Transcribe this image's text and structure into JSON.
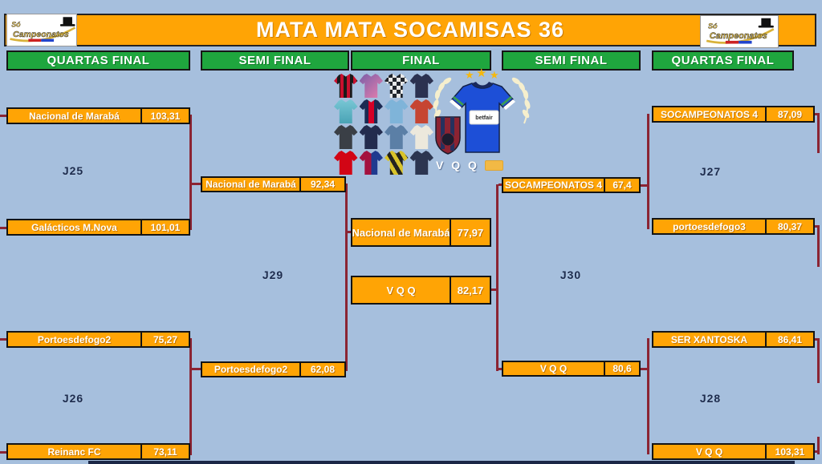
{
  "title": "MATA MATA SOCAMISAS 36",
  "logo": {
    "small": "Só",
    "main": "Campeonatos"
  },
  "rounds": [
    {
      "label": "QUARTAS FINAL"
    },
    {
      "label": "SEMI FINAL"
    },
    {
      "label": "FINAL"
    },
    {
      "label": "SEMI FINAL"
    },
    {
      "label": "QUARTAS FINAL"
    }
  ],
  "bracket": {
    "left_qf1": {
      "game": "J25",
      "team1": {
        "name": "Nacional de Marabá",
        "score": "103,31"
      },
      "team2": {
        "name": "Galácticos M.Nova",
        "score": "101,01"
      }
    },
    "left_qf2": {
      "game": "J26",
      "team1": {
        "name": "Portoesdefogo2",
        "score": "75,27"
      },
      "team2": {
        "name": "Reinanc FC",
        "score": "73,11"
      }
    },
    "left_sf": {
      "game": "J29",
      "team1": {
        "name": "Nacional de Marabá",
        "score": "92,34"
      },
      "team2": {
        "name": "Portoesdefogo2",
        "score": "62,08"
      }
    },
    "final": {
      "team1": {
        "name": "Nacional de Marabá",
        "score": "77,97"
      },
      "team2": {
        "name": "V Q Q",
        "score": "82,17"
      }
    },
    "right_sf": {
      "game": "J30",
      "team1": {
        "name": "SOCAMPEONATOS 4",
        "score": "67,4"
      },
      "team2": {
        "name": "V Q Q",
        "score": "80,6"
      }
    },
    "right_qf1": {
      "game": "J27",
      "team1": {
        "name": "SOCAMPEONATOS 4",
        "score": "87,09"
      },
      "team2": {
        "name": "portoesdefogo3",
        "score": "80,37"
      }
    },
    "right_qf2": {
      "game": "J28",
      "team1": {
        "name": "SER XANTOSKA",
        "score": "86,41"
      },
      "team2": {
        "name": "V Q Q",
        "score": "103,31"
      }
    }
  },
  "champion": {
    "name": "V Q Q",
    "sponsor": "betfair",
    "stars": 3
  },
  "colors": {
    "background": "#a6bfdd",
    "bar_orange": "#ffa405",
    "header_green": "#1fa63e",
    "connector_maroon": "#8b2433",
    "navy_text": "#1c2b4d",
    "star_gold": "#f5b80f",
    "champion_jersey_blue": "#1d4fd7",
    "crest_red": "#8c2332",
    "laurel_cream": "#f6efcd"
  },
  "jersey_grid": {
    "shirts": [
      "repeating-linear-gradient(90deg,#c8102e 0 4px,#1a1a1a 4px 8px)",
      "linear-gradient(135deg,#7b5ea7,#e77fae)",
      "repeating-conic-gradient(#20242b 0% 25%, #e8e8e8 0% 50%) 0 0 / 10px 10px",
      "#2b3150",
      "linear-gradient(180deg,#79c7d5,#4aa3b5)",
      "linear-gradient(90deg,#1b2a52 38%,#d40026 38%,#d40026 62%,#1b2a52 62%)",
      "#7fb4d9",
      "#c64532",
      "#3a3f46",
      "#232c4e",
      "#5b7fa6",
      "#ece8dc",
      "#d20515",
      "linear-gradient(90deg,#a4123f 50%,#1f3a8f 50%)",
      "repeating-linear-gradient(60deg,#d8c32a 0 5px,#23231f 5px 10px)",
      "#2c3550"
    ]
  }
}
